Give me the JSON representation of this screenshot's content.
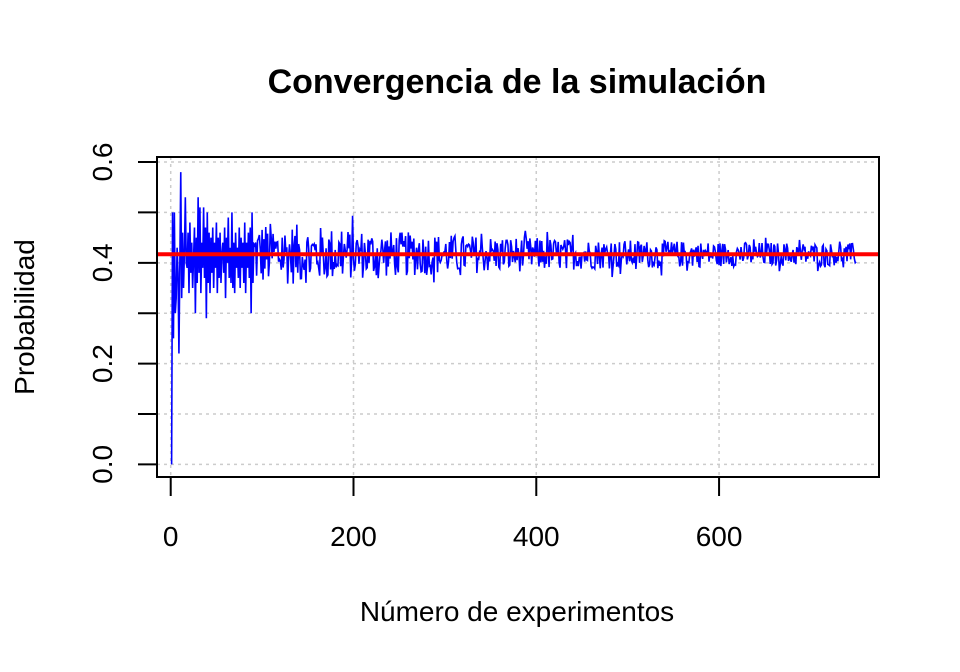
{
  "chart_data": {
    "type": "line",
    "title": "Convergencia de la simulación",
    "xlabel": "Número de experimentos",
    "ylabel": "Probabilidad",
    "xlim": [
      -15,
      775
    ],
    "ylim": [
      -0.025,
      0.61
    ],
    "x_ticks": [
      0,
      200,
      400,
      600
    ],
    "x_tick_labels": [
      "0",
      "200",
      "400",
      "600"
    ],
    "y_ticks": [
      0.0,
      0.1,
      0.2,
      0.3,
      0.4,
      0.5,
      0.6
    ],
    "y_tick_labels": [
      "0.0",
      "",
      "0.2",
      "",
      "0.4",
      "",
      "0.6"
    ],
    "grid": true,
    "series": [
      {
        "kind": "simulated-line",
        "color": "#0000FF",
        "x_start": 1,
        "x_end": 750,
        "values": [
          0.0,
          0.5,
          0.25,
          0.5,
          0.3,
          0.33,
          0.43,
          0.38,
          0.22,
          0.4,
          0.58,
          0.33,
          0.46,
          0.35,
          0.42,
          0.53,
          0.4,
          0.39,
          0.46,
          0.34,
          0.48,
          0.38,
          0.44,
          0.35,
          0.41,
          0.47,
          0.3,
          0.45,
          0.36,
          0.53,
          0.38,
          0.51,
          0.34,
          0.44,
          0.39,
          0.51,
          0.37,
          0.47,
          0.29,
          0.5,
          0.36,
          0.46,
          0.34,
          0.45,
          0.38,
          0.47,
          0.35,
          0.44,
          0.39,
          0.48,
          0.34,
          0.45,
          0.37,
          0.46,
          0.36,
          0.42,
          0.44,
          0.38,
          0.47,
          0.33,
          0.45,
          0.4,
          0.49,
          0.37,
          0.43,
          0.36,
          0.5,
          0.35,
          0.44,
          0.34,
          0.46,
          0.39,
          0.43,
          0.37,
          0.47,
          0.35,
          0.45,
          0.39,
          0.44,
          0.36,
          0.48,
          0.34,
          0.44,
          0.39,
          0.46,
          0.37,
          0.47,
          0.3,
          0.5,
          0.36
        ],
        "tail_center": 0.417,
        "envelope": [
          [
            100,
            0.065
          ],
          [
            200,
            0.05
          ],
          [
            300,
            0.04
          ],
          [
            450,
            0.03
          ],
          [
            600,
            0.025
          ],
          [
            750,
            0.022
          ]
        ]
      }
    ],
    "reference_line": {
      "y": 0.417,
      "color": "#FF0000"
    }
  }
}
